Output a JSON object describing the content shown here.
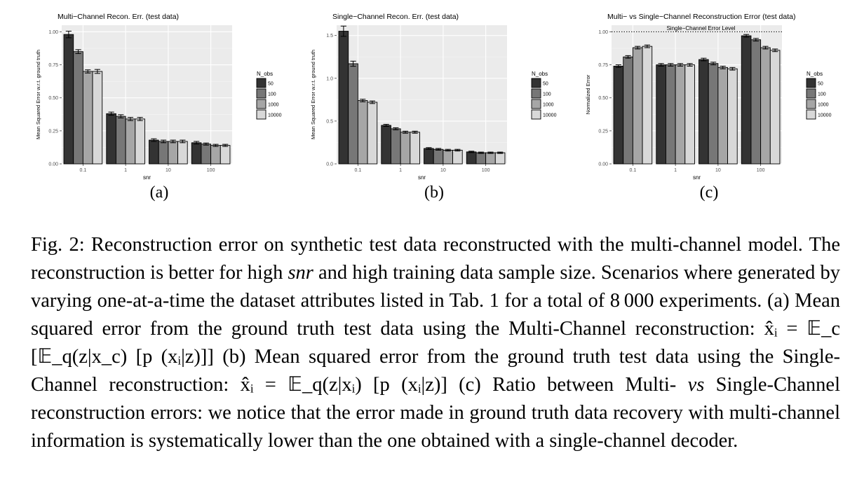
{
  "palette": {
    "50": "#333333",
    "100": "#777777",
    "1000": "#a6a6a6",
    "10000": "#d8d8d8"
  },
  "chart_data": [
    {
      "type": "bar",
      "title": "Multi−Channel Recon. Err. (test data)",
      "xlabel": "snr",
      "ylabel": "Mean Squared Error w.r.t. ground truth",
      "categories": [
        "0.1",
        "1",
        "10",
        "100"
      ],
      "ylim": [
        0,
        1.05
      ],
      "yticks": [
        "0.00",
        "0.25",
        "0.50",
        "0.75",
        "1.00"
      ],
      "ytick_values": [
        0,
        0.25,
        0.5,
        0.75,
        1.0
      ],
      "legend_title": "N_obs",
      "legend_position": "right",
      "grid": true,
      "series": [
        {
          "name": "50",
          "values": [
            0.98,
            0.38,
            0.18,
            0.16
          ],
          "err": [
            0.025,
            0.012,
            0.01,
            0.01
          ]
        },
        {
          "name": "100",
          "values": [
            0.85,
            0.36,
            0.17,
            0.15
          ],
          "err": [
            0.015,
            0.012,
            0.01,
            0.008
          ]
        },
        {
          "name": "1000",
          "values": [
            0.7,
            0.34,
            0.17,
            0.14
          ],
          "err": [
            0.012,
            0.012,
            0.01,
            0.008
          ]
        },
        {
          "name": "10000",
          "values": [
            0.7,
            0.34,
            0.17,
            0.14
          ],
          "err": [
            0.015,
            0.012,
            0.01,
            0.008
          ]
        }
      ],
      "subcaption": "(a)"
    },
    {
      "type": "bar",
      "title": "Single−Channel Recon. Err. (test data)",
      "xlabel": "snr",
      "ylabel": "Mean Squared Error w.r.t. ground truth",
      "categories": [
        "0.1",
        "1",
        "10",
        "100"
      ],
      "ylim": [
        0,
        1.62
      ],
      "yticks": [
        "0.0",
        "0.5",
        "1.0",
        "1.5"
      ],
      "ytick_values": [
        0,
        0.5,
        1.0,
        1.5
      ],
      "legend_title": "N_obs",
      "legend_position": "right",
      "grid": true,
      "series": [
        {
          "name": "50",
          "values": [
            1.55,
            0.45,
            0.18,
            0.14
          ],
          "err": [
            0.06,
            0.012,
            0.01,
            0.008
          ]
        },
        {
          "name": "100",
          "values": [
            1.17,
            0.41,
            0.17,
            0.13
          ],
          "err": [
            0.03,
            0.012,
            0.01,
            0.008
          ]
        },
        {
          "name": "1000",
          "values": [
            0.74,
            0.37,
            0.16,
            0.13
          ],
          "err": [
            0.015,
            0.012,
            0.01,
            0.008
          ]
        },
        {
          "name": "10000",
          "values": [
            0.72,
            0.37,
            0.16,
            0.13
          ],
          "err": [
            0.015,
            0.012,
            0.01,
            0.008
          ]
        }
      ],
      "subcaption": "(b)"
    },
    {
      "type": "bar",
      "title": "Multi− vs Single−Channel Reconstruction Error (test data)",
      "xlabel": "snr",
      "ylabel": "Normalized Error",
      "categories": [
        "0.1",
        "1",
        "10",
        "100"
      ],
      "ylim": [
        0,
        1.05
      ],
      "yticks": [
        "0.00",
        "0.25",
        "0.50",
        "0.75",
        "1.00"
      ],
      "ytick_values": [
        0,
        0.25,
        0.5,
        0.75,
        1.0
      ],
      "legend_title": "N_obs",
      "legend_position": "right",
      "grid": true,
      "reference_line": {
        "value": 1.0,
        "label": "Single−Channel Error Level"
      },
      "series": [
        {
          "name": "50",
          "values": [
            0.74,
            0.75,
            0.79,
            0.97
          ],
          "err": [
            0.01,
            0.01,
            0.01,
            0.01
          ]
        },
        {
          "name": "100",
          "values": [
            0.81,
            0.75,
            0.76,
            0.94
          ],
          "err": [
            0.01,
            0.01,
            0.01,
            0.01
          ]
        },
        {
          "name": "1000",
          "values": [
            0.88,
            0.75,
            0.73,
            0.88
          ],
          "err": [
            0.01,
            0.01,
            0.01,
            0.01
          ]
        },
        {
          "name": "10000",
          "values": [
            0.89,
            0.75,
            0.72,
            0.86
          ],
          "err": [
            0.01,
            0.01,
            0.01,
            0.01
          ]
        }
      ],
      "subcaption": "(c)"
    }
  ],
  "caption": {
    "lead": "Fig. 2: Reconstruction error on synthetic test data reconstructed with the multi-channel model. The reconstruction is better for high ",
    "snr": "snr",
    "mid1": " and high training data sample size. Scenarios where generated by varying one-at-a-time the dataset attributes listed in Tab. 1 for a total of 8 000 experiments. (a) Mean squared error from the ground truth test data using the Multi-Channel reconstruction: ",
    "formula_a": "x̂ᵢ = 𝔼_c [𝔼_q(z|x_c) [p (xᵢ|z)]]",
    "mid2": " (b) Mean squared error from the ground truth test data using the Single-Channel reconstruction: ",
    "formula_b": "x̂ᵢ = 𝔼_q(z|xᵢ) [p (xᵢ|z)]",
    "mid3": " (c) Ratio between Multi- ",
    "vs": "vs",
    "tail": " Single-Channel reconstruction errors: we notice that the error made in ground truth data recovery with multi-channel information is systematically lower than the one obtained with a single-channel decoder."
  }
}
